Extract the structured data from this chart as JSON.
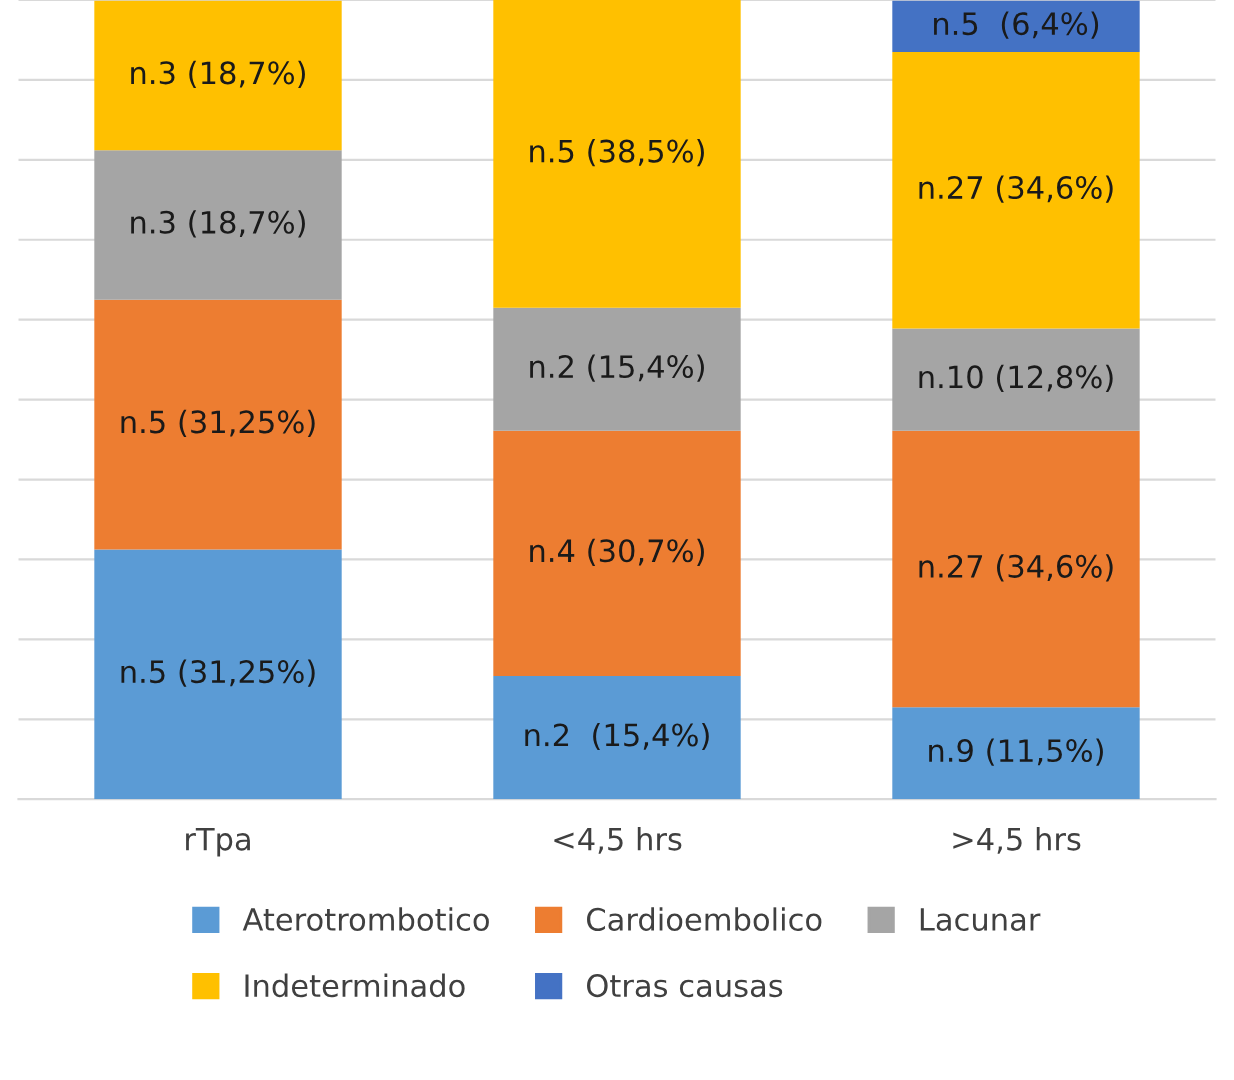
{
  "chart_data": {
    "type": "bar",
    "stacked": true,
    "categories": [
      "rTpa",
      "<4,5 hrs",
      ">4,5 hrs"
    ],
    "series": [
      {
        "name": "Aterotrombotico",
        "color": "#5b9bd5",
        "values": [
          31.25,
          15.4,
          11.5
        ],
        "value_labels": [
          "n.5 (31,25%)",
          "n.2  (15,4%)",
          "n.9 (11,5%)"
        ]
      },
      {
        "name": "Cardioembolico",
        "color": "#ed7d31",
        "values": [
          31.25,
          30.7,
          34.6
        ],
        "value_labels": [
          "n.5 (31,25%)",
          "n.4 (30,7%)",
          "n.27 (34,6%)"
        ]
      },
      {
        "name": "Lacunar",
        "color": "#a5a5a5",
        "values": [
          18.7,
          15.4,
          12.8
        ],
        "value_labels": [
          "n.3 (18,7%)",
          "n.2 (15,4%)",
          "n.10 (12,8%)"
        ]
      },
      {
        "name": "Indeterminado",
        "color": "#ffc000",
        "values": [
          18.7,
          38.5,
          34.6
        ],
        "value_labels": [
          "n.3 (18,7%)",
          "n.5 (38,5%)",
          "n.27 (34,6%)"
        ]
      },
      {
        "name": "Otras causas",
        "color": "#4472c4",
        "values": [
          null,
          null,
          6.4
        ],
        "value_labels": [
          null,
          null,
          "n.5  (6,4%)"
        ]
      }
    ],
    "ylim": [
      0,
      100
    ],
    "yticks": [
      {
        "value": 0,
        "label": null
      },
      {
        "value": 10,
        "label": null
      },
      {
        "value": 20,
        "label": null
      },
      {
        "value": 30,
        "label": null
      },
      {
        "value": 40,
        "label": null
      },
      {
        "value": 50,
        "label": null
      },
      {
        "value": 60,
        "label": null
      },
      {
        "value": 70,
        "label": null
      },
      {
        "value": 80,
        "label": null
      },
      {
        "value": 90,
        "label": null
      },
      {
        "value": 100,
        "label": null
      }
    ],
    "tick_labels": "x",
    "grid": "y",
    "legend": "bottom"
  }
}
